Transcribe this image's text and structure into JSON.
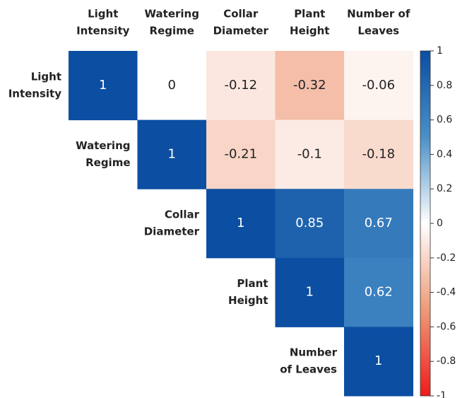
{
  "chart_data": {
    "type": "heatmap",
    "x_labels": [
      [
        "Light",
        "Intensity"
      ],
      [
        "Watering",
        "Regime"
      ],
      [
        "Collar",
        "Diameter"
      ],
      [
        "Plant",
        "Height"
      ],
      [
        "Number of",
        "Leaves"
      ]
    ],
    "y_labels": [
      [
        "Light",
        "Intensity"
      ],
      [
        "Watering",
        "Regime"
      ],
      [
        "Collar",
        "Diameter"
      ],
      [
        "Plant",
        "Height"
      ],
      [
        "Number",
        "of Leaves"
      ]
    ],
    "values": [
      [
        1,
        0,
        -0.12,
        -0.32,
        -0.06
      ],
      [
        null,
        1,
        -0.21,
        -0.1,
        -0.18
      ],
      [
        null,
        null,
        1,
        0.85,
        0.67
      ],
      [
        null,
        null,
        null,
        1,
        0.62
      ],
      [
        null,
        null,
        null,
        null,
        1
      ]
    ],
    "clim": [
      -1,
      1
    ],
    "cticks": [
      1,
      0.8,
      0.6,
      0.4,
      0.2,
      0,
      -0.2,
      -0.4,
      -0.6,
      -0.8,
      -1
    ],
    "colormap": [
      "#ee1c1c",
      "#ee9a78",
      "#ffffff",
      "#4a90c8",
      "#0b4ea2"
    ]
  }
}
